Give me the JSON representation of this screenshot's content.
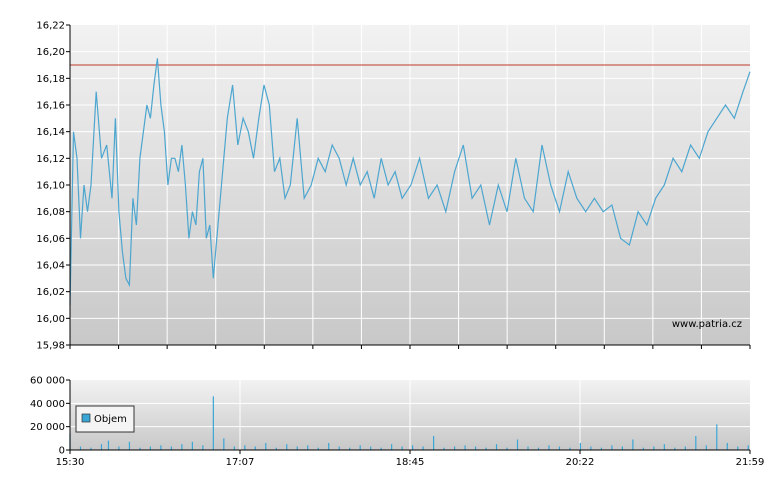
{
  "watermark": "www.patria.cz",
  "colors": {
    "price_line": "#4da6cf",
    "reference_line": "#c0392b",
    "volume_bar": "#39a6d6",
    "grid": "#ffffff",
    "plot_bg_top": "#f2f2f2",
    "plot_bg_bottom": "#c8c8c8",
    "axis": "#000000"
  },
  "chart_data": [
    {
      "type": "line",
      "name": "price",
      "grid": true,
      "x_unit": "time of day",
      "xlim": [
        "15:30",
        "21:59"
      ],
      "ylim": [
        15.98,
        16.22
      ],
      "y_ticks": [
        "15,98",
        "16,00",
        "16,02",
        "16,04",
        "16,06",
        "16,08",
        "16,10",
        "16,12",
        "16,14",
        "16,16",
        "16,18",
        "16,20",
        "16,22"
      ],
      "reference_value": 16.19,
      "series": [
        {
          "x": [
            "15:30",
            "15:32",
            "15:34",
            "15:36",
            "15:38",
            "15:40",
            "15:42",
            "15:45",
            "15:48",
            "15:51",
            "15:54",
            "15:56",
            "15:58",
            "16:00",
            "16:02",
            "16:04",
            "16:06",
            "16:08",
            "16:10",
            "16:12",
            "16:14",
            "16:16",
            "16:18",
            "16:20",
            "16:22",
            "16:24",
            "16:26",
            "16:28",
            "16:30",
            "16:32",
            "16:34",
            "16:36",
            "16:38",
            "16:40",
            "16:42",
            "16:44",
            "16:46",
            "16:48",
            "16:50",
            "16:52",
            "16:54",
            "16:56",
            "16:58",
            "17:00",
            "17:03",
            "17:06",
            "17:09",
            "17:12",
            "17:15",
            "17:18",
            "17:21",
            "17:24",
            "17:27",
            "17:30",
            "17:33",
            "17:36",
            "17:40",
            "17:44",
            "17:48",
            "17:52",
            "17:56",
            "18:00",
            "18:04",
            "18:08",
            "18:12",
            "18:16",
            "18:20",
            "18:24",
            "18:28",
            "18:32",
            "18:36",
            "18:40",
            "18:45",
            "18:50",
            "18:55",
            "19:00",
            "19:05",
            "19:10",
            "19:15",
            "19:20",
            "19:25",
            "19:30",
            "19:35",
            "19:40",
            "19:45",
            "19:50",
            "19:55",
            "20:00",
            "20:05",
            "20:10",
            "20:15",
            "20:20",
            "20:25",
            "20:30",
            "20:35",
            "20:40",
            "20:45",
            "20:50",
            "20:55",
            "21:00",
            "21:05",
            "21:10",
            "21:15",
            "21:20",
            "21:25",
            "21:30",
            "21:35",
            "21:40",
            "21:45",
            "21:50",
            "21:55",
            "21:59"
          ],
          "y": [
            16.01,
            16.14,
            16.12,
            16.06,
            16.1,
            16.08,
            16.1,
            16.17,
            16.12,
            16.13,
            16.09,
            16.15,
            16.08,
            16.05,
            16.03,
            16.025,
            16.09,
            16.07,
            16.12,
            16.14,
            16.16,
            16.15,
            16.175,
            16.195,
            16.16,
            16.14,
            16.1,
            16.12,
            16.12,
            16.11,
            16.13,
            16.1,
            16.06,
            16.08,
            16.07,
            16.11,
            16.12,
            16.06,
            16.07,
            16.03,
            16.06,
            16.09,
            16.12,
            16.15,
            16.175,
            16.13,
            16.15,
            16.14,
            16.12,
            16.15,
            16.175,
            16.16,
            16.11,
            16.12,
            16.09,
            16.1,
            16.15,
            16.09,
            16.1,
            16.12,
            16.11,
            16.13,
            16.12,
            16.1,
            16.12,
            16.1,
            16.11,
            16.09,
            16.12,
            16.1,
            16.11,
            16.09,
            16.1,
            16.12,
            16.09,
            16.1,
            16.08,
            16.11,
            16.13,
            16.09,
            16.1,
            16.07,
            16.1,
            16.08,
            16.12,
            16.09,
            16.08,
            16.13,
            16.1,
            16.08,
            16.11,
            16.09,
            16.08,
            16.09,
            16.08,
            16.085,
            16.06,
            16.055,
            16.08,
            16.07,
            16.09,
            16.1,
            16.12,
            16.11,
            16.13,
            16.12,
            16.14,
            16.15,
            16.16,
            16.15,
            16.17,
            16.185
          ]
        }
      ]
    },
    {
      "type": "bar",
      "name": "volume",
      "grid": true,
      "xlim": [
        "15:30",
        "21:59"
      ],
      "ylim": [
        0,
        60000
      ],
      "y_ticks": [
        "0",
        "20 000",
        "40 000",
        "60 000"
      ],
      "x_ticks": [
        "15:30",
        "17:07",
        "18:45",
        "20:22",
        "21:59"
      ],
      "legend": "top-left",
      "series": [
        {
          "name": "Objem",
          "x": [
            "15:30",
            "15:36",
            "15:42",
            "15:48",
            "15:52",
            "15:58",
            "16:04",
            "16:10",
            "16:16",
            "16:22",
            "16:28",
            "16:34",
            "16:40",
            "16:46",
            "16:52",
            "16:58",
            "17:04",
            "17:10",
            "17:16",
            "17:22",
            "17:28",
            "17:34",
            "17:40",
            "17:46",
            "17:52",
            "17:58",
            "18:04",
            "18:10",
            "18:16",
            "18:22",
            "18:28",
            "18:34",
            "18:40",
            "18:46",
            "18:52",
            "18:58",
            "19:04",
            "19:10",
            "19:16",
            "19:22",
            "19:28",
            "19:34",
            "19:40",
            "19:46",
            "19:52",
            "19:58",
            "20:04",
            "20:10",
            "20:16",
            "20:22",
            "20:28",
            "20:34",
            "20:40",
            "20:46",
            "20:52",
            "20:58",
            "21:04",
            "21:10",
            "21:16",
            "21:22",
            "21:28",
            "21:34",
            "21:40",
            "21:46",
            "21:52",
            "21:58"
          ],
          "values": [
            14000,
            3000,
            2000,
            5000,
            8000,
            3000,
            7000,
            2000,
            3000,
            4000,
            3000,
            5000,
            7000,
            4000,
            46000,
            10000,
            3000,
            4000,
            3000,
            6000,
            2000,
            5000,
            3000,
            4000,
            2000,
            6000,
            3000,
            2000,
            4000,
            3000,
            2000,
            5000,
            3000,
            4000,
            3000,
            12000,
            2000,
            3000,
            4000,
            3000,
            2000,
            5000,
            2000,
            9000,
            3000,
            2000,
            4000,
            3000,
            2000,
            6000,
            3000,
            2000,
            4000,
            3000,
            9000,
            2000,
            3000,
            5000,
            2000,
            3000,
            12000,
            4000,
            22000,
            6000,
            3000,
            4000
          ]
        }
      ]
    }
  ]
}
